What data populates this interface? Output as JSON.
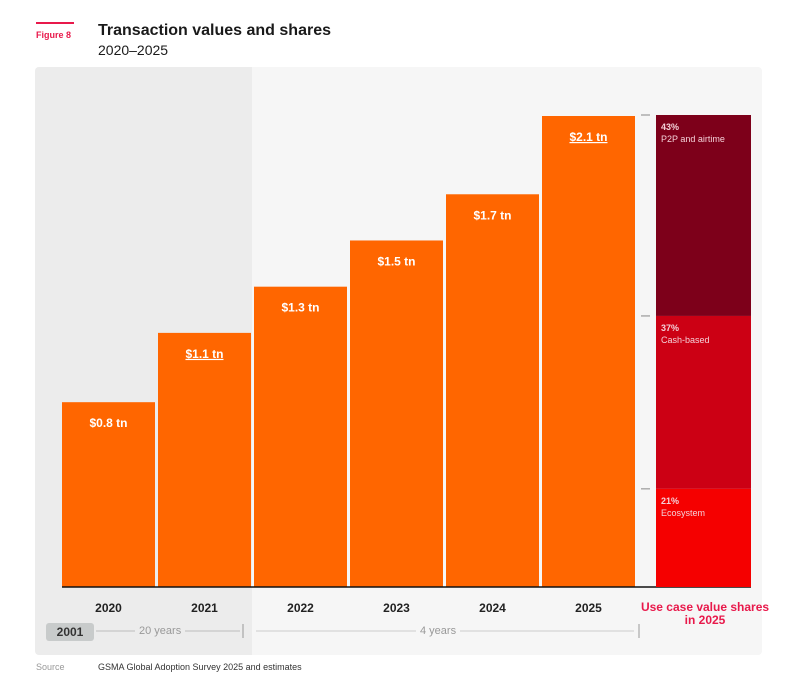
{
  "figure_label": "Figure 8",
  "title": "Transaction values and shares",
  "subtitle": "2020–2025",
  "colors": {
    "bar": "#ff6600",
    "p2p": "#7d001a",
    "cash": "#cc0014",
    "ecosystem": "#f50000",
    "accent": "#e8194b"
  },
  "chart_data": {
    "type": "bar",
    "categories": [
      "2020",
      "2021",
      "2022",
      "2023",
      "2024",
      "2025"
    ],
    "values": [
      0.8,
      1.1,
      1.3,
      1.5,
      1.7,
      2.1
    ],
    "unit": "tn USD",
    "data_labels": [
      "$0.8 tn",
      "$1.1 tn",
      "$1.3 tn",
      "$1.5 tn",
      "$1.7 tn",
      "$2.1 tn"
    ],
    "underlined_labels": [
      "2021",
      "2025"
    ],
    "ylim": [
      0,
      2.1
    ],
    "grid": false,
    "stack": {
      "title": "Use case value shares in 2025",
      "segments": [
        {
          "pct_label": "43%",
          "name": "P2P and airtime",
          "value": 43,
          "color": "#7d001a"
        },
        {
          "pct_label": "37%",
          "name": "Cash-based",
          "value": 37,
          "color": "#cc0014"
        },
        {
          "pct_label": "21%",
          "name": "Ecosystem",
          "value": 21,
          "color": "#f50000"
        }
      ]
    }
  },
  "timeline": {
    "start_badge": "2001",
    "span1": "20 years",
    "span2": "4 years"
  },
  "source": {
    "label": "Source",
    "text": "GSMA Global Adoption Survey 2025 and estimates"
  }
}
